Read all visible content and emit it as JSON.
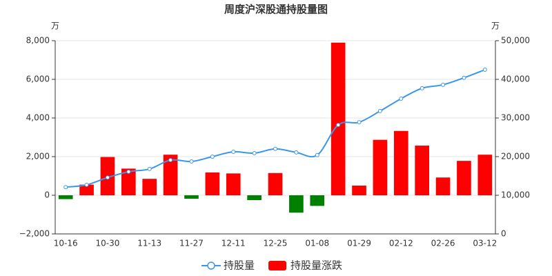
{
  "chart_data": {
    "type": "bar-line",
    "title": "周度沪深股通持股量图",
    "y_unit": "万",
    "y2_unit": "万",
    "categories": [
      "10-16",
      null,
      "10-30",
      null,
      "11-13",
      null,
      "11-27",
      null,
      "12-11",
      null,
      "12-25",
      null,
      "01-08",
      null,
      "01-29",
      null,
      "02-12",
      null,
      "02-26",
      null,
      "03-12"
    ],
    "series": [
      {
        "name": "持股量",
        "type": "line",
        "axis": "y2",
        "color": "#3a96e8",
        "values": [
          12100,
          12700,
          14600,
          16100,
          16800,
          19100,
          18750,
          20000,
          21250,
          20900,
          22000,
          21100,
          20400,
          28200,
          28900,
          31800,
          35000,
          37700,
          38600,
          40400,
          42500
        ]
      },
      {
        "name": "持股量涨跌",
        "type": "bar",
        "axis": "y",
        "color": "#ff0000",
        "negative_color": "#008000",
        "values": [
          -200,
          550,
          1980,
          1380,
          850,
          2100,
          -180,
          1180,
          1130,
          -250,
          1150,
          -900,
          -550,
          7900,
          500,
          2870,
          3330,
          2570,
          920,
          1780,
          2100
        ]
      }
    ],
    "ylim": [
      -2000,
      8000
    ],
    "yticks": [
      {
        "value": -2000,
        "label": "−2,000"
      },
      0,
      {
        "value": 2000,
        "label": "2,000"
      },
      {
        "value": 4000,
        "label": "4,000"
      },
      {
        "value": 6000,
        "label": "6,000"
      },
      {
        "value": 8000,
        "label": "8,000"
      }
    ],
    "y2lim": [
      0,
      50000
    ],
    "y2ticks": [
      0,
      {
        "value": 10000,
        "label": "10,000"
      },
      {
        "value": 20000,
        "label": "20,000"
      },
      {
        "value": 30000,
        "label": "30,000"
      },
      {
        "value": 40000,
        "label": "40,000"
      },
      {
        "value": 50000,
        "label": "50,000"
      }
    ],
    "grid": true,
    "legend": "bottom"
  }
}
